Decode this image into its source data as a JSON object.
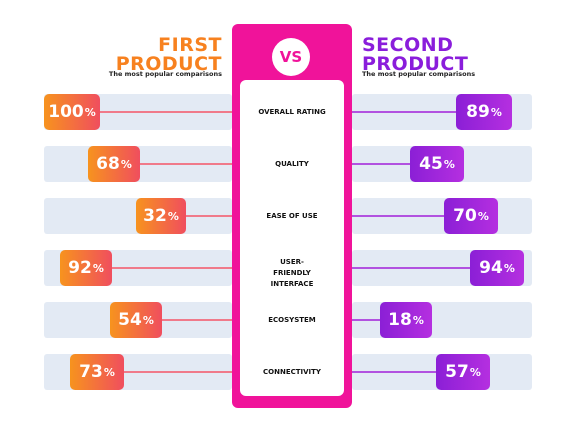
{
  "left": {
    "title_line1": "FIRST",
    "title_line2": "PRODUCT",
    "subtitle": "The most popular comparisons"
  },
  "right": {
    "title_line1": "SECOND",
    "title_line2": "PRODUCT",
    "subtitle": "The most popular comparisons"
  },
  "vs": "VS",
  "colors": {
    "left_accent": "#f7811f",
    "right_accent": "#8a1ddb",
    "center": "#f0139a",
    "row_bg": "#e3eaf4"
  },
  "rows": [
    {
      "criterion": "OVERALL RATING",
      "left_value": "100",
      "right_value": "89"
    },
    {
      "criterion": "QUALITY",
      "left_value": "68",
      "right_value": "45"
    },
    {
      "criterion": "EASE OF USE",
      "left_value": "32",
      "right_value": "70"
    },
    {
      "criterion": "USER-FRIENDLY INTERFACE",
      "left_value": "92",
      "right_value": "94"
    },
    {
      "criterion": "ECOSYSTEM",
      "left_value": "54",
      "right_value": "18"
    },
    {
      "criterion": "CONNECTIVITY",
      "left_value": "73",
      "right_value": "57"
    }
  ],
  "percent_sign": "%"
}
